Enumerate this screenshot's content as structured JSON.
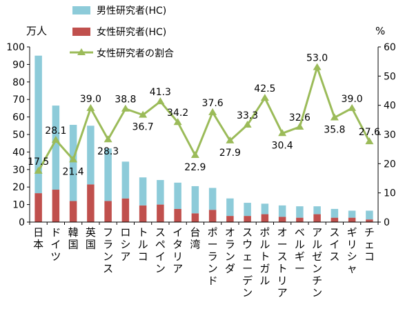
{
  "chart_data": {
    "type": "bar+line",
    "categories": [
      "日本",
      "ドイツ",
      "韓国",
      "英国",
      "フランス",
      "ロシア",
      "トルコ",
      "スペイン",
      "イタリア",
      "台湾",
      "ポーランド",
      "オランダ",
      "スウェーデン",
      "ポルトガル",
      "オーストリア",
      "ベルギー",
      "アルゼンチン",
      "スイス",
      "ギリシャ",
      "チェコ"
    ],
    "series": [
      {
        "name": "男性研究者(HC)",
        "type": "stacked-bar",
        "axis": "left",
        "color": "#8dcbd9",
        "values": [
          78.5,
          48,
          43.5,
          33.5,
          30,
          21,
          16,
          14,
          15,
          15.5,
          12.5,
          10,
          7.5,
          6,
          6.5,
          6.5,
          4.5,
          5,
          4,
          5
        ]
      },
      {
        "name": "女性研究者(HC)",
        "type": "stacked-bar",
        "axis": "left",
        "color": "#c0504d",
        "values": [
          16.5,
          18.5,
          12,
          21.5,
          12,
          13.5,
          9.5,
          10,
          7.5,
          5,
          7,
          3.5,
          3.5,
          4.5,
          3,
          2.5,
          4.5,
          2.5,
          2.5,
          1.5
        ]
      },
      {
        "name": "女性研究者の割合",
        "type": "line",
        "axis": "right",
        "color": "#9bbb59",
        "values": [
          17.5,
          28.1,
          21.4,
          39.0,
          28.3,
          38.8,
          36.7,
          41.3,
          34.2,
          22.9,
          37.6,
          27.9,
          33.3,
          42.5,
          30.4,
          32.6,
          53.0,
          35.8,
          39.0,
          27.6
        ],
        "labels": [
          "17.5",
          "28.1",
          "21.4",
          "39.0",
          "28.3",
          "38.8",
          "36.7",
          "41.3",
          "34.2",
          "22.9",
          "37.6",
          "27.9",
          "33.3",
          "42.5",
          "30.4",
          "32.6",
          "53.0",
          "35.8",
          "39.0",
          "27.6"
        ]
      }
    ],
    "y_left": {
      "unit": "万人",
      "ylim": [
        0,
        100
      ],
      "ticks": [
        "0",
        "10",
        "20",
        "30",
        "40",
        "50",
        "60",
        "70",
        "80",
        "90",
        "100"
      ]
    },
    "y_right": {
      "unit": "%",
      "ylim": [
        0,
        60
      ],
      "ticks": [
        "0",
        "10",
        "20",
        "30",
        "40",
        "50",
        "60"
      ]
    },
    "legend_placement": "top-center",
    "grid": false
  }
}
